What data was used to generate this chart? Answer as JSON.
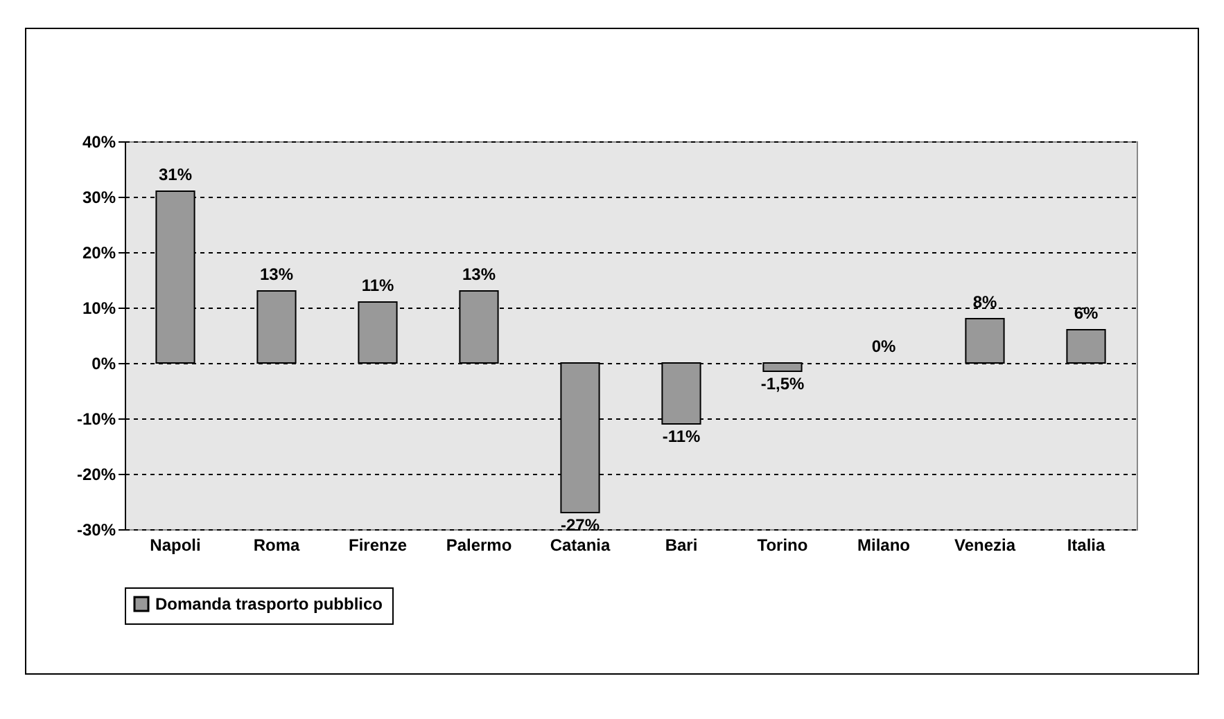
{
  "chart_data": {
    "type": "bar",
    "categories": [
      "Napoli",
      "Roma",
      "Firenze",
      "Palermo",
      "Catania",
      "Bari",
      "Torino",
      "Milano",
      "Venezia",
      "Italia"
    ],
    "series": [
      {
        "name": "Domanda trasporto pubblico",
        "color": "#999999",
        "values": [
          31,
          13,
          11,
          13,
          -27,
          -11,
          -1.5,
          0,
          8,
          6
        ],
        "value_labels": [
          "31%",
          "13%",
          "11%",
          "13%",
          "-27%",
          "-11%",
          "-1,5%",
          "0%",
          "8%",
          "6%"
        ]
      }
    ],
    "ylim": [
      -30,
      40
    ],
    "yticks": [
      {
        "value": -30,
        "label": "-30%"
      },
      {
        "value": -20,
        "label": "-20%"
      },
      {
        "value": -10,
        "label": "-10%"
      },
      {
        "value": 0,
        "label": "0%"
      },
      {
        "value": 10,
        "label": "10%"
      },
      {
        "value": 20,
        "label": "20%"
      },
      {
        "value": 30,
        "label": "30%"
      },
      {
        "value": 40,
        "label": "40%"
      }
    ],
    "grid": "y",
    "legend": "bottom"
  }
}
